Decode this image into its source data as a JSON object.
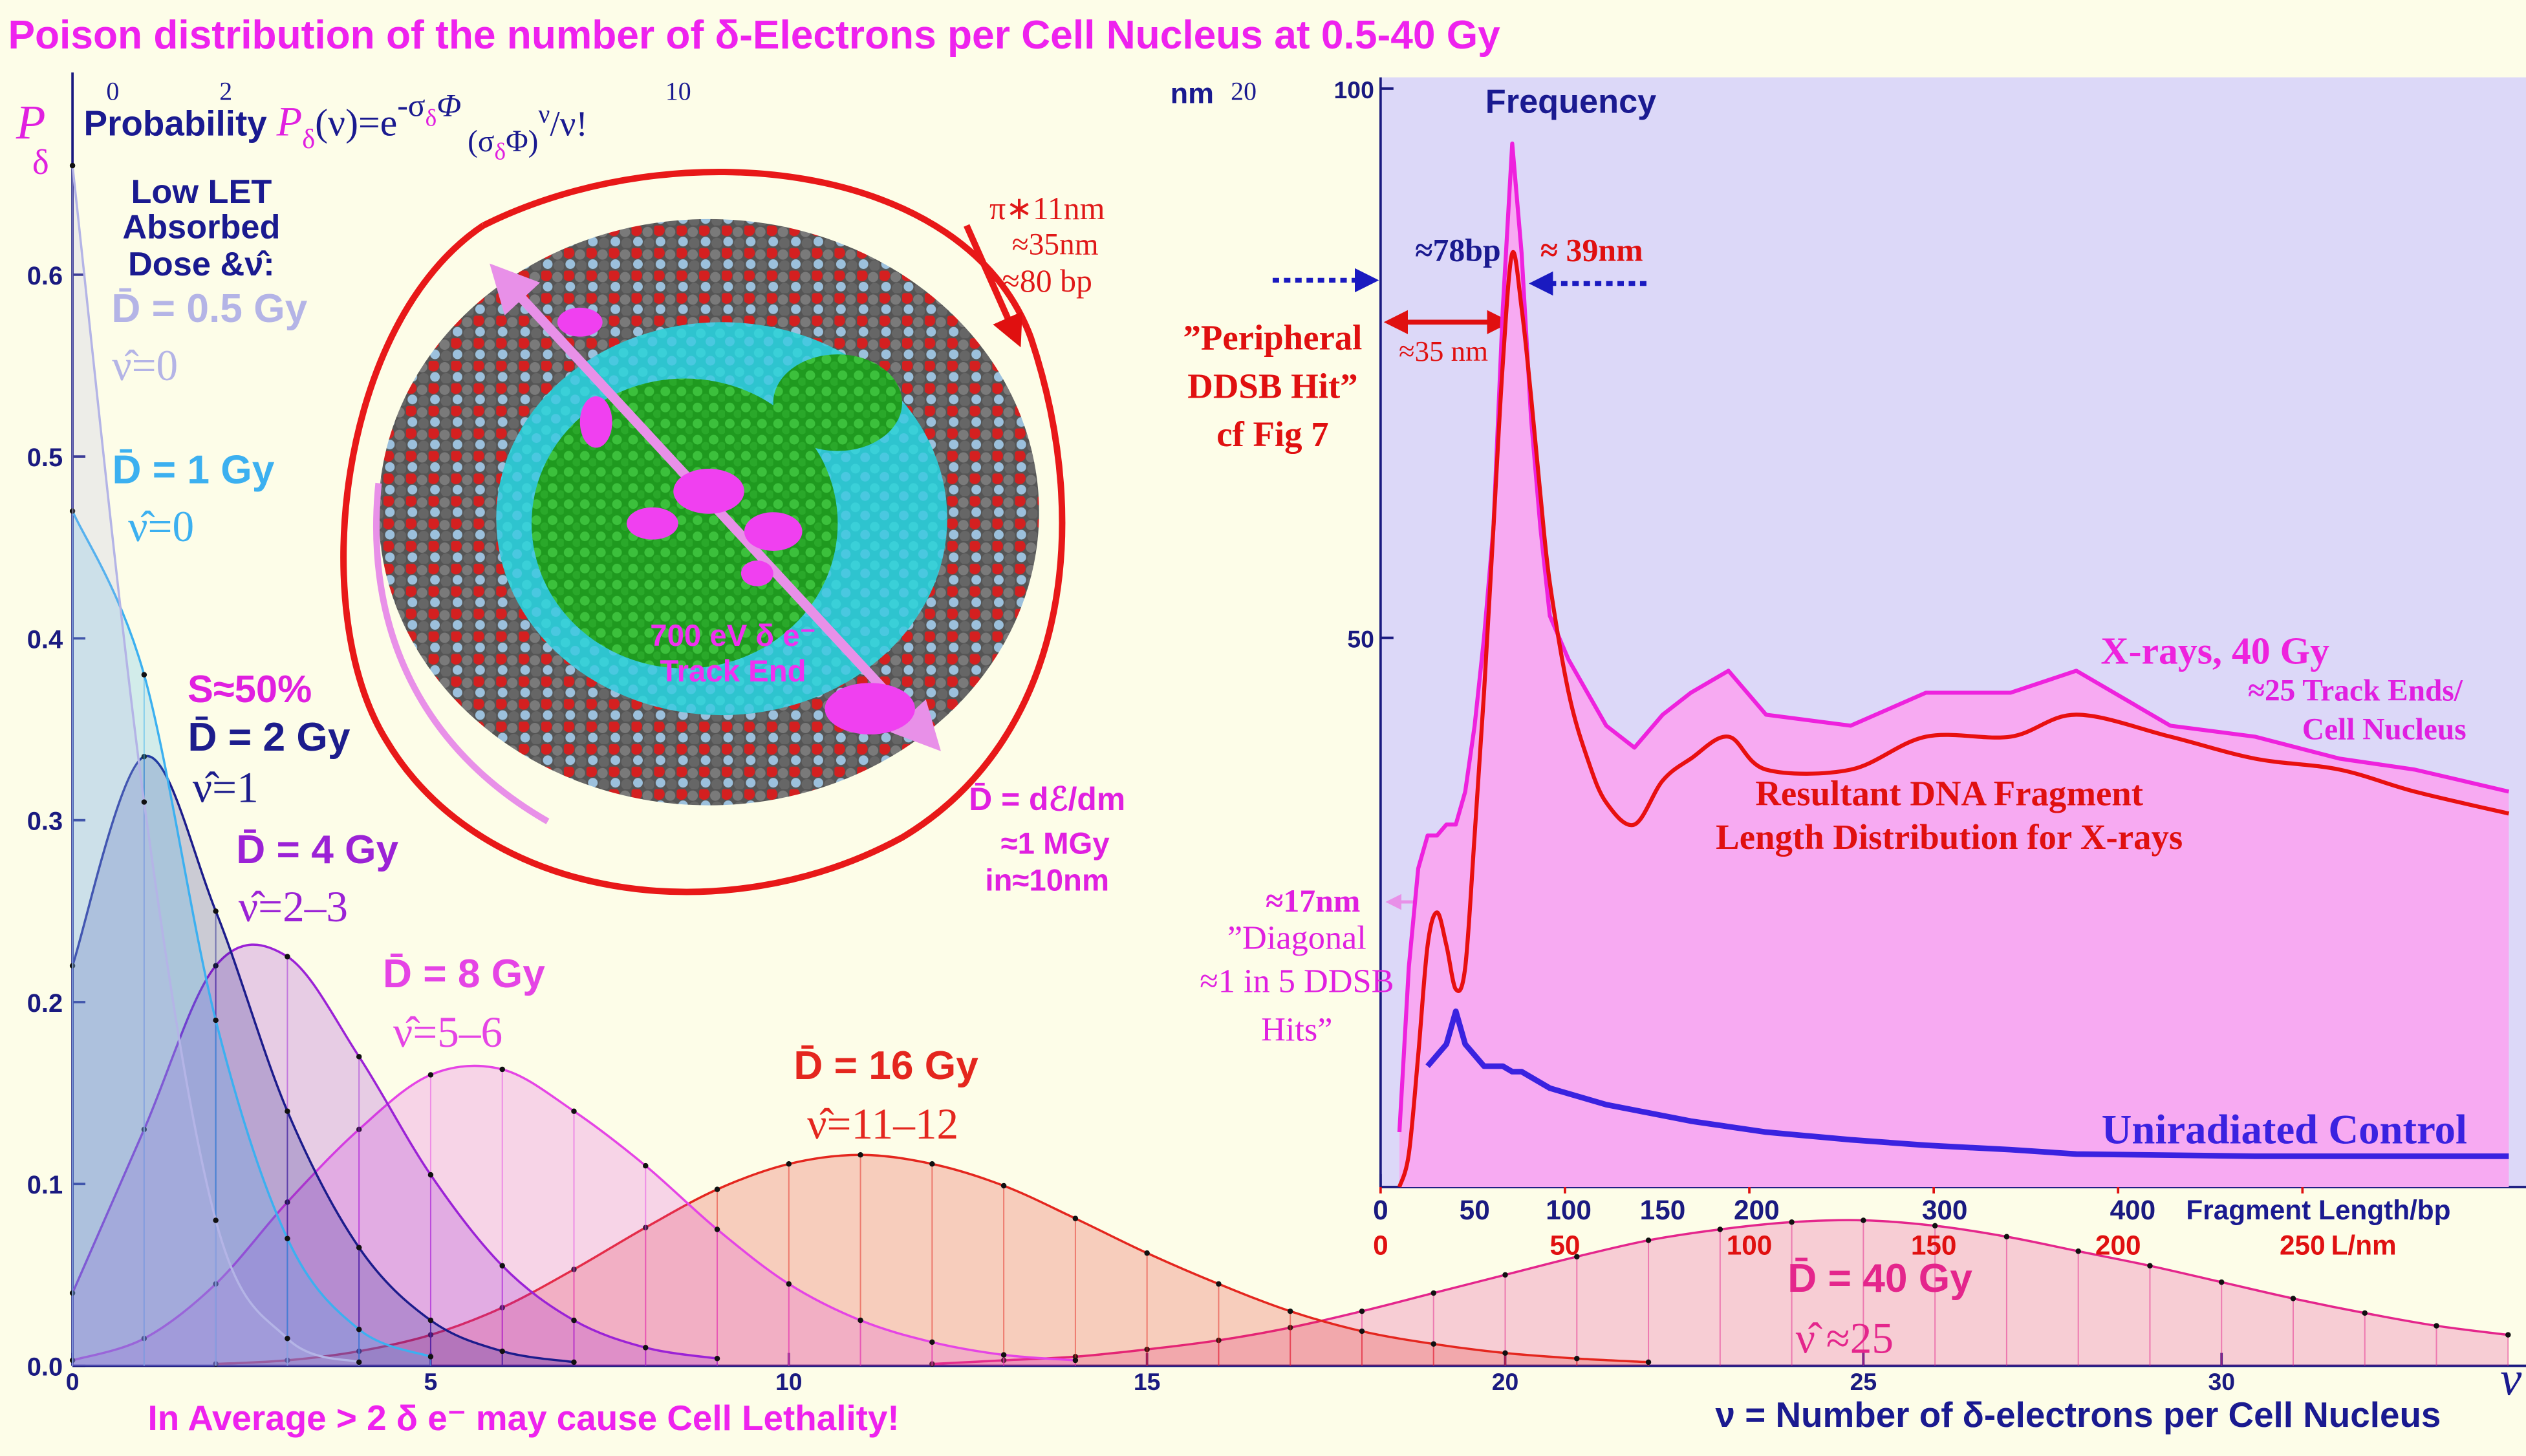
{
  "title": "Poison distribution of the number of δ-Electrons per Cell Nucleus at 0.5-40 Gy",
  "chart_data": [
    {
      "type": "line",
      "y_label": "P",
      "y_label_sub": "δ",
      "formula": [
        "Probability",
        "P",
        "δ",
        "(ν)=e",
        "-σ",
        "δ",
        "Φ",
        "(σ",
        "δ",
        "Φ)",
        "ν",
        "/ν!"
      ],
      "x_label": "ν = Number of δ-electrons per Cell Nucleus",
      "x_symbol": "ν",
      "x": [
        0,
        1,
        2,
        3,
        4,
        5,
        6,
        7,
        8,
        9,
        10,
        11,
        12,
        13,
        14,
        15,
        16,
        17,
        18,
        19,
        20,
        21,
        22,
        23,
        24,
        25,
        26,
        27,
        28,
        29,
        30,
        31,
        32,
        33,
        34
      ],
      "xlim": [
        0,
        34.25
      ],
      "xticks": [
        0,
        5,
        10,
        15,
        20,
        25,
        30
      ],
      "ylim": [
        0,
        0.705
      ],
      "yticks": [
        {
          "value": 0,
          "label": "0.0"
        },
        0.1,
        0.2,
        0.3,
        0.4,
        0.5,
        0.6
      ],
      "nm_unit": "nm",
      "nm_ticks": [
        0,
        2,
        10,
        20
      ],
      "series": [
        {
          "name": "D̄ = 0.5 Gy",
          "nu_label": "ν̂=0",
          "color": "#b4b4e6",
          "values": [
            0.66,
            0.31,
            0.08,
            0.015,
            0.002,
            null,
            null,
            null,
            null,
            null,
            null,
            null,
            null,
            null,
            null,
            null,
            null,
            null,
            null,
            null,
            null,
            null,
            null,
            null,
            null,
            null,
            null,
            null,
            null,
            null,
            null,
            null,
            null,
            null,
            null
          ]
        },
        {
          "name": "D̄ = 1 Gy",
          "nu_label": "ν̂=0",
          "color": "#3cb0f0",
          "values": [
            0.47,
            0.38,
            0.19,
            0.07,
            0.02,
            0.005,
            null,
            null,
            null,
            null,
            null,
            null,
            null,
            null,
            null,
            null,
            null,
            null,
            null,
            null,
            null,
            null,
            null,
            null,
            null,
            null,
            null,
            null,
            null,
            null,
            null,
            null,
            null,
            null,
            null
          ]
        },
        {
          "name": "D̄ = 2 Gy",
          "nu_label": "ν̂=1",
          "color": "#1c1c8c",
          "values": [
            0.22,
            0.335,
            0.25,
            0.14,
            0.065,
            0.025,
            0.008,
            0.002,
            null,
            null,
            null,
            null,
            null,
            null,
            null,
            null,
            null,
            null,
            null,
            null,
            null,
            null,
            null,
            null,
            null,
            null,
            null,
            null,
            null,
            null,
            null,
            null,
            null,
            null,
            null
          ]
        },
        {
          "name": "D̄ = 4 Gy",
          "nu_label": "ν̂=2–3",
          "color": "#9b22d6",
          "values": [
            0.04,
            0.13,
            0.22,
            0.225,
            0.17,
            0.105,
            0.055,
            0.025,
            0.01,
            0.004,
            null,
            null,
            null,
            null,
            null,
            null,
            null,
            null,
            null,
            null,
            null,
            null,
            null,
            null,
            null,
            null,
            null,
            null,
            null,
            null,
            null,
            null,
            null,
            null,
            null
          ]
        },
        {
          "name": "D̄ = 8 Gy",
          "nu_label": "ν̂=5–6",
          "color": "#e544e5",
          "values": [
            0.003,
            0.015,
            0.045,
            0.09,
            0.13,
            0.16,
            0.163,
            0.14,
            0.11,
            0.075,
            0.045,
            0.025,
            0.013,
            0.006,
            0.003,
            null,
            null,
            null,
            null,
            null,
            null,
            null,
            null,
            null,
            null,
            null,
            null,
            null,
            null,
            null,
            null,
            null,
            null,
            null,
            null
          ]
        },
        {
          "name": "D̄ = 16 Gy",
          "nu_label": "ν̂=11–12",
          "color": "#e4261e",
          "values": [
            null,
            null,
            0.001,
            0.003,
            0.008,
            0.017,
            0.032,
            0.053,
            0.076,
            0.097,
            0.111,
            0.116,
            0.111,
            0.099,
            0.081,
            0.062,
            0.045,
            0.03,
            0.019,
            0.012,
            0.007,
            0.004,
            0.002,
            null,
            null,
            null,
            null,
            null,
            null,
            null,
            null,
            null,
            null,
            null,
            null
          ]
        },
        {
          "name": "D̄ = 40 Gy",
          "nu_label": "ν̂ ≈25",
          "color": "#e4268c",
          "values": [
            null,
            null,
            null,
            null,
            null,
            null,
            null,
            null,
            null,
            null,
            null,
            null,
            0.001,
            0.003,
            0.005,
            0.009,
            0.014,
            0.021,
            0.03,
            0.04,
            0.05,
            0.06,
            0.069,
            0.075,
            0.079,
            0.08,
            0.077,
            0.071,
            0.063,
            0.055,
            0.046,
            0.037,
            0.029,
            0.022,
            0.017
          ]
        }
      ],
      "annotations": [
        "Low LET",
        "Absorbed",
        "Dose &ν̂:",
        "S≈50%",
        "In Average > 2 δ e⁻ may cause Cell Lethality!",
        "π∗11nm",
        "≈35nm",
        "≈80 bp",
        "700 eV δ e⁻",
        "Track End",
        "D̄ = dℰ/dm",
        "≈1 MGy",
        "in≈10nm"
      ]
    },
    {
      "type": "line",
      "y_label": "Frequency",
      "x_label": "Fragment Length/bp",
      "x2_label": "L/nm",
      "x": [
        10,
        15,
        20,
        25,
        30,
        35,
        40,
        45,
        50,
        55,
        60,
        65,
        70,
        75,
        80,
        85,
        90,
        100,
        110,
        120,
        135,
        150,
        165,
        185,
        205,
        250,
        290,
        335,
        370,
        420,
        465,
        510,
        550,
        600
      ],
      "xlim": [
        0,
        604
      ],
      "xticks": [
        0,
        50,
        100,
        150,
        200,
        300,
        400
      ],
      "x2lim": [
        0,
        308
      ],
      "x2ticks": [
        0,
        50,
        100,
        150,
        200,
        250
      ],
      "ylim": [
        0,
        100
      ],
      "yticks": [
        50,
        100
      ],
      "series": [
        {
          "name": "X-rays, 40 Gy",
          "color": "#ee22dd",
          "values": [
            5,
            20,
            29,
            32,
            32,
            33,
            33,
            36,
            42,
            50,
            60,
            80,
            95,
            85,
            70,
            60,
            52,
            48,
            45,
            42,
            40,
            43,
            45,
            47,
            43,
            42,
            45,
            45,
            47,
            42,
            41,
            39,
            38,
            36
          ]
        },
        {
          "color": "#e81010",
          "values": [
            0,
            3,
            12,
            22,
            25,
            22,
            18,
            20,
            32,
            45,
            60,
            75,
            85,
            80,
            72,
            63,
            55,
            45,
            39,
            35,
            33,
            37,
            39,
            41,
            38,
            38,
            41,
            41,
            43,
            41,
            39,
            38,
            36,
            34
          ]
        },
        {
          "name": "Uniradiated Control",
          "color": "#3a22e0",
          "values": [
            null,
            null,
            null,
            11,
            12,
            13,
            16,
            13,
            12,
            11,
            11,
            11,
            10.5,
            10.5,
            10,
            9.5,
            9,
            8.5,
            8,
            7.5,
            7,
            6.5,
            6,
            5.5,
            5,
            4.3,
            3.8,
            3.4,
            3,
            2.9,
            2.8,
            2.8,
            2.8,
            2.8
          ]
        }
      ],
      "annotations": [
        "≈78bp",
        "≈ 39nm",
        "≈35 nm",
        "”Peripheral",
        "DDSB Hit”",
        "cf Fig 7",
        "≈25 Track Ends/",
        "Cell Nucleus",
        "Resultant DNA Fragment",
        "Length Distribution for X-rays",
        "≈17nm",
        "”Diagonal",
        "≈1 in 5 DDSB",
        "Hits”"
      ]
    }
  ]
}
